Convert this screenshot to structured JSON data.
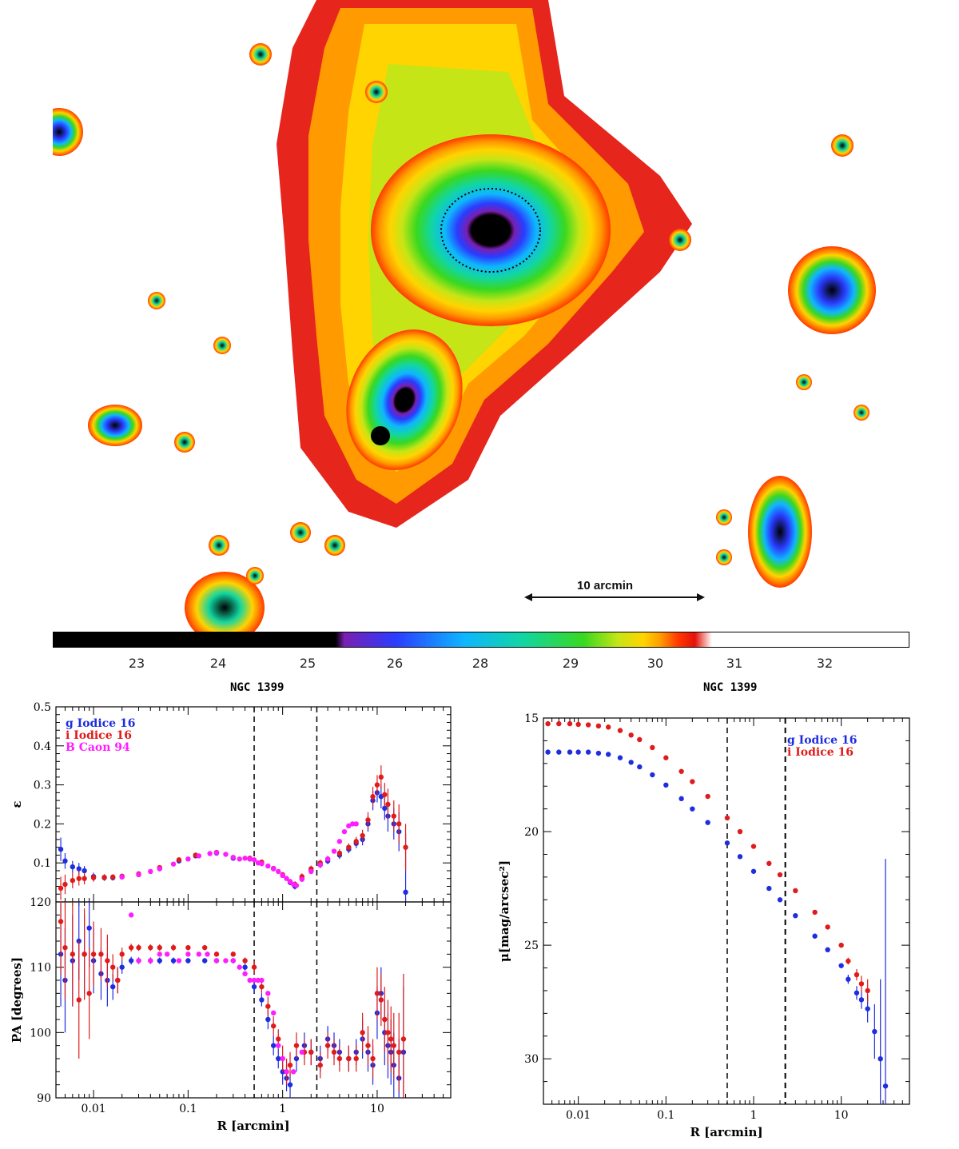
{
  "image": {
    "scale_label": "10 arcmin",
    "colorbar_ticks": [
      "23",
      "24",
      "25",
      "26",
      "28",
      "29",
      "30",
      "31",
      "32"
    ],
    "colorbar_colors": [
      "#000000",
      "#000000",
      "#7a1fb0",
      "#2a3cff",
      "#0fb6ff",
      "#12d6a0",
      "#39d81f",
      "#c6e516",
      "#ffd400",
      "#ff9a00",
      "#ff3a00",
      "#e4120a",
      "#ffffff",
      "#ffffff"
    ],
    "left_title": "NGC 1399",
    "right_title": "NGC 1399"
  },
  "chart_data": [
    {
      "type": "scatter",
      "panel": "ellipticity",
      "xscale": "log",
      "xlim": [
        0.004,
        60
      ],
      "ylim": [
        0.0,
        0.5
      ],
      "yticks": [
        0.1,
        0.2,
        0.3,
        0.4,
        0.5
      ],
      "ylabel": "ε",
      "vlines": [
        0.5,
        2.3
      ],
      "legend": [
        {
          "label": "g Iodice 16",
          "color": "#1f2de0"
        },
        {
          "label": "i Iodice 16",
          "color": "#e01b1b"
        },
        {
          "label": "B Caon 94",
          "color": "#ff1dff"
        }
      ],
      "series": [
        {
          "name": "g Iodice 16",
          "color": "#1f2de0",
          "x": [
            0.0045,
            0.005,
            0.006,
            0.007,
            0.008,
            0.01,
            0.013,
            0.016,
            0.02,
            0.03,
            0.05,
            0.08,
            0.12,
            0.2,
            0.3,
            0.45,
            0.6,
            0.8,
            1.0,
            1.2,
            1.35,
            1.6,
            2.0,
            2.5,
            3.0,
            4.0,
            5.0,
            6.0,
            7.0,
            8.0,
            9.0,
            10.0,
            11.0,
            12.0,
            13.0,
            15.0,
            17.0,
            20.0
          ],
          "y": [
            0.135,
            0.105,
            0.09,
            0.085,
            0.08,
            0.065,
            0.062,
            0.062,
            0.064,
            0.07,
            0.085,
            0.105,
            0.118,
            0.125,
            0.112,
            0.11,
            0.1,
            0.085,
            0.068,
            0.05,
            0.04,
            0.06,
            0.08,
            0.095,
            0.105,
            0.12,
            0.135,
            0.15,
            0.16,
            0.2,
            0.26,
            0.28,
            0.27,
            0.24,
            0.22,
            0.2,
            0.18,
            0.025
          ],
          "err": [
            0.03,
            0.02,
            0.015,
            0.015,
            0.012,
            0.01,
            0.008,
            0.007,
            0.006,
            0.005,
            0.004,
            0.004,
            0.004,
            0.004,
            0.004,
            0.004,
            0.004,
            0.005,
            0.006,
            0.007,
            0.008,
            0.008,
            0.008,
            0.008,
            0.008,
            0.01,
            0.01,
            0.012,
            0.015,
            0.02,
            0.025,
            0.025,
            0.03,
            0.03,
            0.04,
            0.04,
            0.05,
            0.15
          ]
        },
        {
          "name": "i Iodice 16",
          "color": "#e01b1b",
          "x": [
            0.0045,
            0.005,
            0.006,
            0.007,
            0.008,
            0.01,
            0.013,
            0.016,
            0.02,
            0.03,
            0.05,
            0.08,
            0.12,
            0.2,
            0.3,
            0.45,
            0.6,
            0.8,
            1.0,
            1.2,
            1.35,
            1.6,
            2.0,
            2.5,
            3.0,
            4.0,
            5.0,
            6.0,
            7.0,
            8.0,
            9.0,
            10.0,
            11.0,
            12.0,
            13.0,
            15.0,
            17.0,
            20.0
          ],
          "y": [
            0.035,
            0.045,
            0.055,
            0.06,
            0.06,
            0.062,
            0.063,
            0.064,
            0.066,
            0.072,
            0.088,
            0.108,
            0.12,
            0.127,
            0.114,
            0.112,
            0.102,
            0.086,
            0.07,
            0.052,
            0.045,
            0.065,
            0.085,
            0.1,
            0.11,
            0.125,
            0.14,
            0.155,
            0.17,
            0.21,
            0.27,
            0.3,
            0.32,
            0.275,
            0.25,
            0.22,
            0.2,
            0.14
          ],
          "err": [
            0.03,
            0.025,
            0.02,
            0.018,
            0.015,
            0.01,
            0.008,
            0.007,
            0.006,
            0.005,
            0.004,
            0.004,
            0.004,
            0.004,
            0.004,
            0.004,
            0.004,
            0.005,
            0.006,
            0.007,
            0.008,
            0.008,
            0.008,
            0.008,
            0.008,
            0.01,
            0.01,
            0.012,
            0.015,
            0.02,
            0.025,
            0.025,
            0.03,
            0.03,
            0.04,
            0.04,
            0.05,
            0.06
          ]
        },
        {
          "name": "B Caon 94",
          "color": "#ff1dff",
          "x": [
            0.02,
            0.03,
            0.04,
            0.05,
            0.07,
            0.1,
            0.13,
            0.17,
            0.2,
            0.25,
            0.3,
            0.35,
            0.4,
            0.45,
            0.5,
            0.55,
            0.6,
            0.7,
            0.8,
            0.9,
            1.0,
            1.1,
            1.2,
            1.3,
            1.4,
            1.6,
            2.0,
            2.5,
            3.0,
            3.5,
            4.0,
            4.5,
            5.0,
            5.5,
            6.0
          ],
          "y": [
            0.064,
            0.07,
            0.078,
            0.085,
            0.097,
            0.11,
            0.118,
            0.124,
            0.126,
            0.122,
            0.114,
            0.11,
            0.112,
            0.11,
            0.108,
            0.1,
            0.098,
            0.092,
            0.085,
            0.078,
            0.068,
            0.06,
            0.052,
            0.045,
            0.042,
            0.058,
            0.078,
            0.095,
            0.11,
            0.13,
            0.155,
            0.18,
            0.195,
            0.2,
            0.2
          ],
          "err": []
        }
      ]
    },
    {
      "type": "scatter",
      "panel": "position_angle",
      "xscale": "log",
      "xlim": [
        0.004,
        60
      ],
      "ylim": [
        90,
        120
      ],
      "yticks": [
        90,
        100,
        110,
        120
      ],
      "ylabel": "PA [degrees]",
      "xlabel": "R [arcmin]",
      "xtick_labels": [
        "0.01",
        "0.1",
        "1",
        "10"
      ],
      "vlines": [
        0.5,
        2.3
      ],
      "series": [
        {
          "name": "g Iodice 16",
          "color": "#1f2de0",
          "x": [
            0.0045,
            0.005,
            0.006,
            0.007,
            0.008,
            0.009,
            0.01,
            0.012,
            0.014,
            0.016,
            0.018,
            0.02,
            0.025,
            0.03,
            0.04,
            0.05,
            0.07,
            0.1,
            0.15,
            0.2,
            0.3,
            0.4,
            0.5,
            0.6,
            0.7,
            0.8,
            0.9,
            1.0,
            1.1,
            1.2,
            1.4,
            1.7,
            2.0,
            2.5,
            3.0,
            3.5,
            4.0,
            5.0,
            6.0,
            7.0,
            8.0,
            9.0,
            10.0,
            11.0,
            12.0,
            13.0,
            14.0,
            15.0,
            17.0,
            19.0
          ],
          "y": [
            112,
            108,
            111,
            114,
            112,
            116,
            111,
            109,
            108,
            107,
            108,
            110,
            111,
            111,
            111,
            111,
            111,
            111,
            111,
            111,
            111,
            110,
            107,
            105,
            102,
            98,
            96,
            94,
            93,
            92,
            96,
            98,
            97,
            96,
            99,
            98,
            97,
            96,
            97,
            99,
            97,
            95,
            103,
            106,
            100,
            98,
            97,
            95,
            93,
            97
          ],
          "err": [
            8,
            8,
            7,
            6,
            6,
            6,
            5,
            4,
            4,
            2,
            2,
            1,
            0.6,
            0.5,
            0.5,
            0.5,
            0.5,
            0.4,
            0.4,
            0.4,
            0.4,
            0.5,
            1,
            1,
            1.5,
            1.5,
            1.5,
            2,
            2,
            2,
            2,
            2,
            2,
            2,
            2,
            2,
            2,
            2,
            2,
            3,
            3,
            3,
            4,
            4,
            5,
            5,
            5,
            5,
            6,
            10
          ]
        },
        {
          "name": "i Iodice 16",
          "color": "#e01b1b",
          "x": [
            0.0045,
            0.005,
            0.006,
            0.007,
            0.008,
            0.009,
            0.01,
            0.012,
            0.014,
            0.016,
            0.018,
            0.02,
            0.025,
            0.03,
            0.04,
            0.05,
            0.07,
            0.1,
            0.15,
            0.2,
            0.3,
            0.4,
            0.5,
            0.6,
            0.7,
            0.8,
            0.9,
            1.0,
            1.1,
            1.2,
            1.4,
            1.7,
            2.0,
            2.5,
            3.0,
            3.5,
            4.0,
            5.0,
            6.0,
            7.0,
            8.0,
            9.0,
            10.0,
            11.0,
            12.0,
            13.0,
            14.0,
            15.0,
            17.0,
            19.0
          ],
          "y": [
            117,
            113,
            112,
            105,
            112,
            106,
            112,
            112,
            111,
            110,
            108,
            112,
            113,
            113,
            113,
            113,
            113,
            113,
            113,
            112,
            112,
            111,
            110,
            107,
            104,
            101,
            99,
            96,
            94,
            95,
            98,
            97,
            97,
            95,
            98,
            97,
            96,
            96,
            96,
            100,
            98,
            96,
            106,
            105,
            102,
            100,
            99,
            98,
            97,
            99
          ],
          "err": [
            8,
            8,
            8,
            9,
            7,
            7,
            5,
            4,
            4,
            2,
            2,
            1,
            0.6,
            0.5,
            0.5,
            0.5,
            0.5,
            0.4,
            0.4,
            0.4,
            0.4,
            0.5,
            1,
            1,
            1.5,
            1.5,
            1.5,
            2,
            2,
            2,
            2,
            2,
            2,
            2,
            2,
            2,
            2,
            2,
            2,
            3,
            3,
            3,
            4,
            4,
            5,
            5,
            5,
            5,
            6,
            10
          ]
        },
        {
          "name": "B Caon 94",
          "color": "#ff1dff",
          "x": [
            0.025,
            0.03,
            0.04,
            0.05,
            0.06,
            0.08,
            0.1,
            0.13,
            0.16,
            0.2,
            0.25,
            0.3,
            0.35,
            0.4,
            0.45,
            0.5,
            0.55,
            0.6,
            0.7,
            0.8,
            0.9,
            1.0,
            1.1,
            1.3,
            1.6
          ],
          "y": [
            118,
            111,
            111,
            112,
            112,
            111,
            112,
            112,
            112,
            111,
            111,
            111,
            110,
            109,
            108,
            108,
            108,
            108,
            106,
            103,
            98,
            96,
            94,
            94,
            97
          ],
          "err": []
        }
      ]
    },
    {
      "type": "scatter",
      "panel": "surface_brightness",
      "xscale": "log",
      "xlim": [
        0.004,
        60
      ],
      "ylim": [
        32,
        15
      ],
      "yticks": [
        15,
        20,
        25,
        30
      ],
      "ylabel": "μ[mag/arcsec²]",
      "xlabel": "R [arcmin]",
      "xtick_labels": [
        "0.01",
        "0.1",
        "1",
        "10"
      ],
      "vlines": [
        0.5,
        2.3
      ],
      "legend": [
        {
          "label": "g Iodice 16",
          "color": "#1f2de0"
        },
        {
          "label": "i Iodice 16",
          "color": "#e01b1b"
        }
      ],
      "series": [
        {
          "name": "g Iodice 16",
          "color": "#1f2de0",
          "x": [
            0.0045,
            0.006,
            0.008,
            0.01,
            0.013,
            0.017,
            0.022,
            0.03,
            0.04,
            0.05,
            0.07,
            0.1,
            0.15,
            0.2,
            0.3,
            0.5,
            0.7,
            1.0,
            1.5,
            2.0,
            3.0,
            5.0,
            7.0,
            10.0,
            12.0,
            15.0,
            17.0,
            20.0,
            24.0,
            28.0,
            32.0
          ],
          "y": [
            16.5,
            16.5,
            16.5,
            16.5,
            16.5,
            16.55,
            16.6,
            16.75,
            16.95,
            17.15,
            17.5,
            17.95,
            18.55,
            19.0,
            19.6,
            20.5,
            21.1,
            21.75,
            22.5,
            23.0,
            23.7,
            24.6,
            25.2,
            25.9,
            26.5,
            27.1,
            27.4,
            27.8,
            28.8,
            30.0,
            31.2
          ],
          "err": [
            0.01,
            0.01,
            0.01,
            0.01,
            0.01,
            0.01,
            0.01,
            0.01,
            0.01,
            0.01,
            0.01,
            0.01,
            0.01,
            0.01,
            0.01,
            0.01,
            0.01,
            0.01,
            0.02,
            0.02,
            0.03,
            0.05,
            0.08,
            0.1,
            0.2,
            0.3,
            0.4,
            0.6,
            1.2,
            3.5,
            10
          ]
        },
        {
          "name": "i Iodice 16",
          "color": "#e01b1b",
          "x": [
            0.0045,
            0.006,
            0.008,
            0.01,
            0.013,
            0.017,
            0.022,
            0.03,
            0.04,
            0.05,
            0.07,
            0.1,
            0.15,
            0.2,
            0.3,
            0.5,
            0.7,
            1.0,
            1.5,
            2.0,
            3.0,
            5.0,
            7.0,
            10.0,
            12.0,
            15.0,
            17.0,
            20.0
          ],
          "y": [
            15.25,
            15.25,
            15.25,
            15.28,
            15.3,
            15.35,
            15.4,
            15.55,
            15.75,
            15.95,
            16.3,
            16.75,
            17.35,
            17.8,
            18.45,
            19.4,
            20.0,
            20.65,
            21.4,
            21.9,
            22.6,
            23.55,
            24.2,
            25.0,
            25.7,
            26.3,
            26.7,
            27.0
          ],
          "err": [
            0.01,
            0.01,
            0.01,
            0.01,
            0.01,
            0.01,
            0.01,
            0.01,
            0.01,
            0.01,
            0.01,
            0.01,
            0.01,
            0.01,
            0.01,
            0.01,
            0.01,
            0.01,
            0.02,
            0.02,
            0.03,
            0.05,
            0.08,
            0.1,
            0.15,
            0.25,
            0.35,
            0.5
          ]
        }
      ]
    }
  ]
}
